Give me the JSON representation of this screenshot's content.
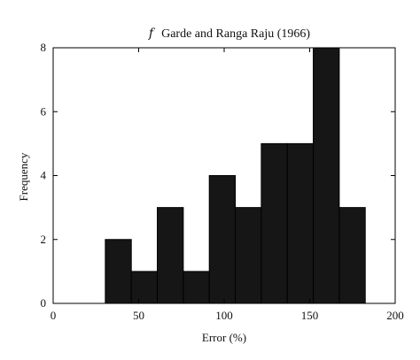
{
  "chart_data": {
    "type": "bar",
    "title_symbol": "f",
    "title": "Garde and Ranga Raju (1966)",
    "xlabel": "Error (%)",
    "ylabel": "Frequency",
    "xlim": [
      0,
      200
    ],
    "ylim": [
      0,
      8
    ],
    "xticks": [
      0,
      50,
      100,
      150,
      200
    ],
    "yticks": [
      0,
      2,
      4,
      6,
      8
    ],
    "bin_edges": [
      30.5,
      45.7,
      60.9,
      76.1,
      91.3,
      106.5,
      121.7,
      136.9,
      152.1,
      167.3,
      182.5
    ],
    "values": [
      2,
      1,
      3,
      1,
      4,
      3,
      5,
      5,
      8,
      3
    ],
    "bar_color": "#161616",
    "grid": false,
    "legend": "none"
  }
}
